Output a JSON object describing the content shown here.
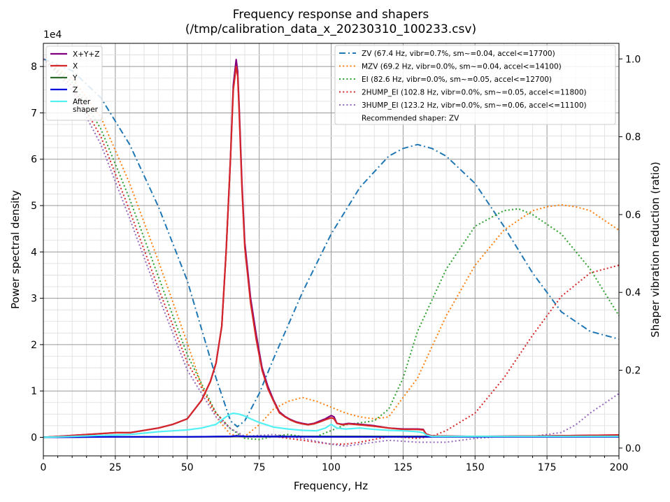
{
  "chart_data": {
    "type": "line",
    "title": "Frequency response and shapers",
    "subtitle": "(/tmp/calibration_data_x_20230310_100233.csv)",
    "xlabel": "Frequency, Hz",
    "ylabel": "Power spectral density",
    "y2label": "Shaper vibration reduction (ratio)",
    "y_scale_label": "1e4",
    "xlim": [
      0,
      200
    ],
    "ylim": [
      -0.4,
      8.5
    ],
    "y2lim": [
      -0.02,
      1.04
    ],
    "xticks": [
      0,
      25,
      50,
      75,
      100,
      125,
      150,
      175,
      200
    ],
    "yticks": [
      0,
      1,
      2,
      3,
      4,
      5,
      6,
      7,
      8
    ],
    "y2ticks": [
      0.0,
      0.2,
      0.4,
      0.6,
      0.8,
      1.0
    ],
    "y2tick_labels": [
      "0.0",
      "0.2",
      "0.4",
      "0.6",
      "0.8",
      "1.0"
    ],
    "grid": true,
    "legend_left_position": "top-left",
    "legend_right_position": "top-right",
    "recommended": "Recommended shaper: ZV",
    "psd_series": [
      {
        "name": "X+Y+Z",
        "color": "#800080",
        "style": "solid",
        "x": [
          0,
          10,
          20,
          25,
          30,
          40,
          45,
          50,
          55,
          58,
          60,
          62,
          63.5,
          65,
          66,
          67,
          67.5,
          68,
          69,
          70,
          72,
          74,
          76,
          78,
          80,
          82,
          84,
          86,
          88,
          90,
          92,
          94,
          96,
          98,
          100,
          101,
          102,
          104,
          106,
          110,
          115,
          120,
          125,
          130,
          132,
          133,
          135,
          150,
          175,
          200
        ],
        "y": [
          0.0,
          0.04,
          0.08,
          0.1,
          0.1,
          0.2,
          0.28,
          0.4,
          0.8,
          1.2,
          1.6,
          2.4,
          4.0,
          6.0,
          7.6,
          8.15,
          7.9,
          7.2,
          5.5,
          4.2,
          3.0,
          2.2,
          1.5,
          1.1,
          0.8,
          0.55,
          0.45,
          0.38,
          0.33,
          0.3,
          0.28,
          0.3,
          0.35,
          0.4,
          0.47,
          0.44,
          0.3,
          0.28,
          0.3,
          0.28,
          0.25,
          0.2,
          0.18,
          0.18,
          0.17,
          0.07,
          0.03,
          0.02,
          0.03,
          0.05
        ]
      },
      {
        "name": "X",
        "color": "#d62728",
        "style": "solid",
        "x": [
          0,
          10,
          20,
          25,
          30,
          40,
          45,
          50,
          55,
          58,
          60,
          62,
          63.5,
          65,
          66,
          67,
          67.5,
          68,
          69,
          70,
          72,
          74,
          76,
          78,
          80,
          82,
          84,
          86,
          88,
          90,
          92,
          94,
          96,
          98,
          100,
          101,
          102,
          104,
          106,
          110,
          115,
          120,
          125,
          130,
          132,
          133,
          135,
          150,
          175,
          200
        ],
        "y": [
          0.0,
          0.04,
          0.08,
          0.1,
          0.1,
          0.2,
          0.28,
          0.4,
          0.8,
          1.2,
          1.6,
          2.4,
          4.0,
          6.0,
          7.5,
          8.0,
          7.8,
          7.1,
          5.4,
          4.1,
          2.9,
          2.1,
          1.45,
          1.05,
          0.78,
          0.53,
          0.44,
          0.37,
          0.32,
          0.29,
          0.27,
          0.29,
          0.33,
          0.38,
          0.42,
          0.4,
          0.3,
          0.27,
          0.29,
          0.27,
          0.24,
          0.2,
          0.17,
          0.17,
          0.16,
          0.07,
          0.03,
          0.02,
          0.03,
          0.05
        ]
      },
      {
        "name": "Y",
        "color": "#2d6b2d",
        "style": "solid",
        "x": [
          0,
          25,
          50,
          65,
          67,
          70,
          100,
          130,
          150,
          200
        ],
        "y": [
          0.0,
          0.01,
          0.01,
          0.02,
          0.03,
          0.02,
          0.02,
          0.02,
          0.02,
          0.02
        ]
      },
      {
        "name": "Z",
        "color": "#0000dd",
        "style": "solid",
        "x": [
          0,
          25,
          50,
          65,
          67,
          70,
          100,
          130,
          150,
          200
        ],
        "y": [
          0.0,
          0.01,
          0.01,
          0.02,
          0.03,
          0.02,
          0.01,
          0.01,
          0.01,
          0.01
        ]
      },
      {
        "name": "After\nshaper",
        "color": "#54f1f4",
        "style": "solid",
        "x": [
          0,
          10,
          20,
          30,
          40,
          50,
          55,
          60,
          63,
          65,
          66,
          68,
          70,
          72,
          75,
          78,
          80,
          85,
          90,
          95,
          98,
          100,
          102,
          105,
          110,
          115,
          120,
          125,
          130,
          132,
          133,
          135,
          150,
          175,
          200
        ],
        "y": [
          0.0,
          0.02,
          0.04,
          0.06,
          0.12,
          0.16,
          0.2,
          0.28,
          0.42,
          0.5,
          0.52,
          0.5,
          0.46,
          0.4,
          0.32,
          0.26,
          0.22,
          0.18,
          0.15,
          0.14,
          0.2,
          0.28,
          0.2,
          0.18,
          0.2,
          0.17,
          0.15,
          0.14,
          0.12,
          0.1,
          0.05,
          0.02,
          0.02,
          0.02,
          0.02
        ]
      }
    ],
    "shaper_series": [
      {
        "name": "ZV (67.4 Hz, vibr=0.7%, sm~=0.04, accel<=17700)",
        "color": "#1f77b4",
        "style": "dashdot",
        "x": [
          0,
          10,
          20,
          30,
          40,
          50,
          60,
          65,
          67.4,
          70,
          75,
          80,
          90,
          100,
          110,
          120,
          125,
          130,
          135,
          140,
          150,
          160,
          170,
          175,
          180,
          190,
          200
        ],
        "y": [
          1.0,
          0.97,
          0.9,
          0.78,
          0.62,
          0.43,
          0.18,
          0.07,
          0.055,
          0.07,
          0.14,
          0.23,
          0.4,
          0.55,
          0.67,
          0.75,
          0.77,
          0.78,
          0.77,
          0.75,
          0.68,
          0.57,
          0.45,
          0.4,
          0.35,
          0.3,
          0.28
        ]
      },
      {
        "name": "MZV (69.2 Hz, vibr=0.0%, sm~=0.04, accel<=14100)",
        "color": "#ff7f0e",
        "style": "dotted",
        "x": [
          0,
          10,
          20,
          30,
          40,
          50,
          55,
          60,
          65,
          70,
          75,
          80,
          85,
          90,
          95,
          100,
          105,
          110,
          115,
          120,
          130,
          140,
          150,
          160,
          170,
          175,
          180,
          185,
          190,
          200
        ],
        "y": [
          1.0,
          0.95,
          0.85,
          0.68,
          0.48,
          0.27,
          0.16,
          0.08,
          0.035,
          0.03,
          0.06,
          0.1,
          0.12,
          0.13,
          0.12,
          0.105,
          0.09,
          0.08,
          0.075,
          0.08,
          0.18,
          0.34,
          0.47,
          0.56,
          0.61,
          0.62,
          0.625,
          0.62,
          0.61,
          0.56
        ]
      },
      {
        "name": "EI (82.6 Hz, vibr=0.0%, sm~=0.05, accel<=12700)",
        "color": "#2ca02c",
        "style": "dotted",
        "x": [
          0,
          10,
          20,
          30,
          40,
          50,
          60,
          65,
          70,
          75,
          80,
          85,
          90,
          95,
          100,
          105,
          110,
          115,
          120,
          125,
          130,
          140,
          150,
          160,
          165,
          170,
          180,
          190,
          200
        ],
        "y": [
          1.0,
          0.94,
          0.82,
          0.64,
          0.44,
          0.24,
          0.09,
          0.05,
          0.025,
          0.022,
          0.03,
          0.035,
          0.03,
          0.03,
          0.045,
          0.06,
          0.065,
          0.07,
          0.1,
          0.18,
          0.3,
          0.46,
          0.57,
          0.61,
          0.615,
          0.6,
          0.55,
          0.46,
          0.34
        ]
      },
      {
        "name": "2HUMP_EI (102.8 Hz, vibr=0.0%, sm~=0.05, accel<=11800)",
        "color": "#d62728",
        "style": "dotted",
        "x": [
          0,
          10,
          20,
          30,
          40,
          50,
          60,
          65,
          70,
          75,
          80,
          90,
          100,
          105,
          110,
          120,
          130,
          135,
          140,
          150,
          160,
          170,
          180,
          190,
          200
        ],
        "y": [
          1.0,
          0.93,
          0.8,
          0.61,
          0.41,
          0.22,
          0.09,
          0.05,
          0.03,
          0.03,
          0.03,
          0.02,
          0.01,
          0.01,
          0.015,
          0.03,
          0.025,
          0.03,
          0.045,
          0.09,
          0.18,
          0.29,
          0.39,
          0.45,
          0.47
        ]
      },
      {
        "name": "3HUMP_EI (123.2 Hz, vibr=0.0%, sm~=0.06, accel<=11100)",
        "color": "#9467bd",
        "style": "dotted",
        "x": [
          0,
          10,
          20,
          30,
          40,
          50,
          60,
          65,
          70,
          80,
          90,
          100,
          105,
          110,
          120,
          130,
          140,
          150,
          160,
          170,
          175,
          180,
          185,
          190,
          200
        ],
        "y": [
          1.0,
          0.92,
          0.78,
          0.59,
          0.39,
          0.2,
          0.08,
          0.05,
          0.03,
          0.035,
          0.025,
          0.01,
          0.005,
          0.01,
          0.02,
          0.015,
          0.015,
          0.025,
          0.03,
          0.03,
          0.035,
          0.04,
          0.06,
          0.09,
          0.14
        ]
      }
    ]
  }
}
